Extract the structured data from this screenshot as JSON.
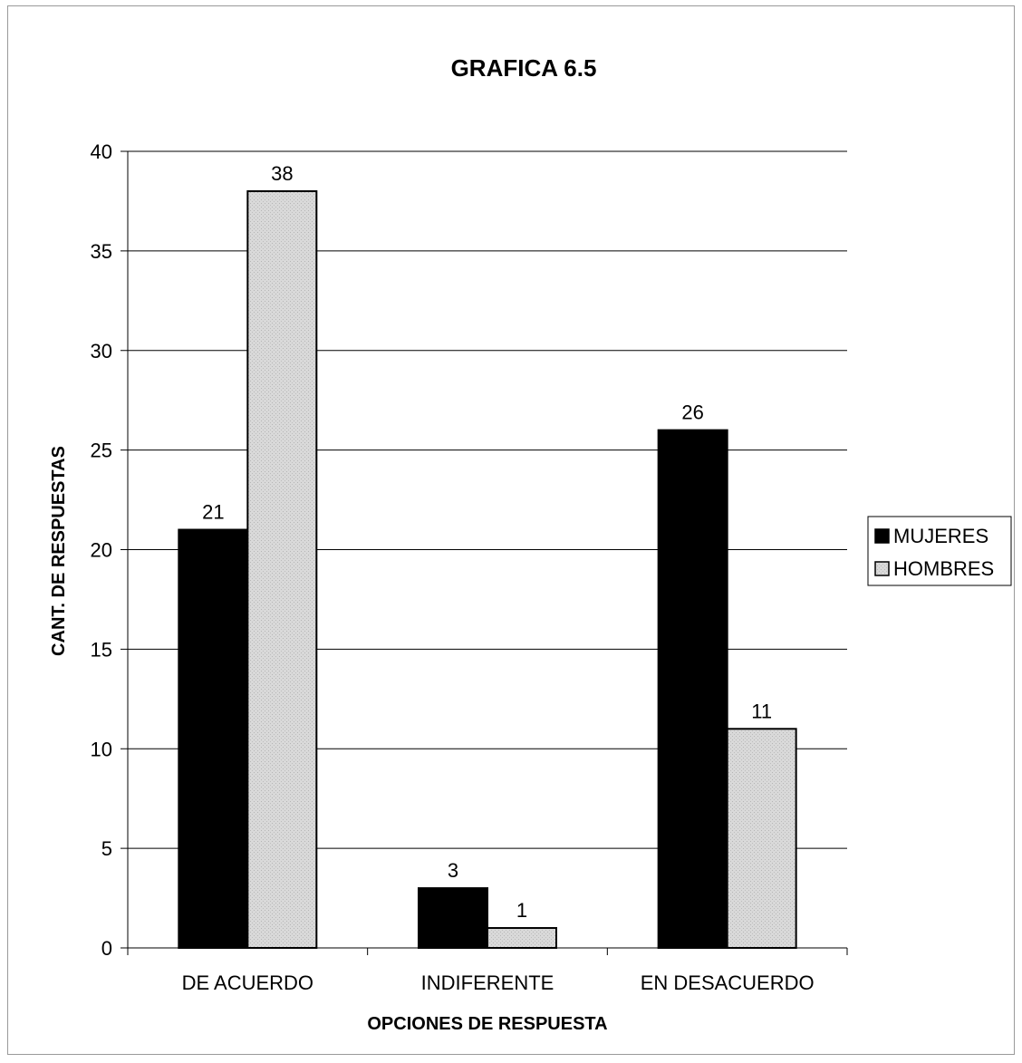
{
  "chart_data": {
    "type": "bar",
    "title": "GRAFICA 6.5",
    "xlabel": "OPCIONES DE RESPUESTA",
    "ylabel": "CANT. DE RESPUESTAS",
    "categories": [
      "DE ACUERDO",
      "INDIFERENTE",
      "EN DESACUERDO"
    ],
    "series": [
      {
        "name": "MUJERES",
        "values": [
          21,
          3,
          26
        ],
        "color": "#000000"
      },
      {
        "name": "HOMBRES",
        "values": [
          38,
          1,
          11
        ],
        "color": "#d9d9d9"
      }
    ],
    "ylim": [
      0,
      40
    ],
    "yticks": [
      "0",
      "5",
      "10",
      "15",
      "20",
      "25",
      "30",
      "35",
      "40"
    ],
    "grid": true,
    "legend": "right"
  }
}
